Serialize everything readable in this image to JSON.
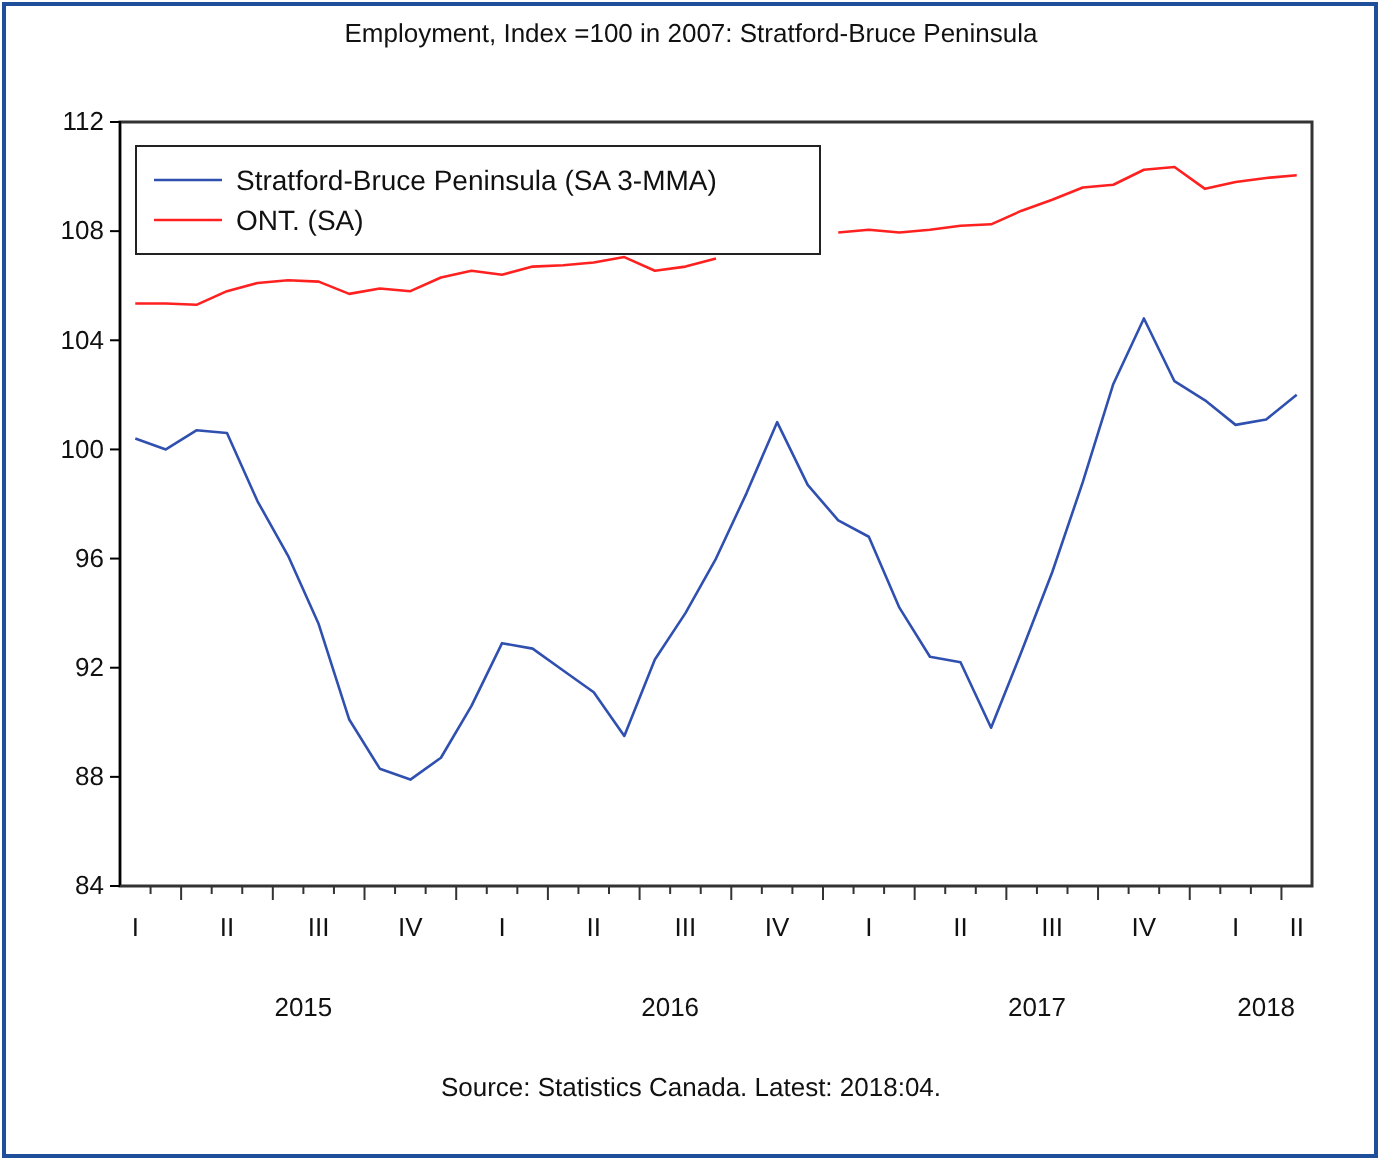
{
  "chart_data": {
    "type": "line",
    "title": "Employment, Index =100 in 2007: Stratford-Bruce Peninsula",
    "categories": [
      "I",
      null,
      null,
      "II",
      null,
      null,
      "III",
      null,
      null,
      "IV",
      null,
      null,
      "I",
      null,
      null,
      "II",
      null,
      null,
      "III",
      null,
      null,
      "IV",
      null,
      null,
      "I",
      null,
      null,
      "II",
      null,
      null,
      "III",
      null,
      null,
      "IV",
      null,
      null,
      "I",
      null,
      "II"
    ],
    "series": [
      {
        "name": "Stratford-Bruce Peninsula (SA 3-MMA)",
        "color": "#3050b0",
        "values": [
          100.4,
          100.0,
          100.7,
          100.6,
          98.1,
          96.1,
          93.6,
          90.1,
          88.3,
          87.9,
          88.7,
          90.6,
          92.9,
          92.7,
          91.9,
          91.1,
          89.5,
          92.3,
          94.0,
          96.0,
          98.4,
          101.0,
          98.7,
          97.4,
          96.8,
          94.2,
          92.4,
          92.2,
          89.8,
          92.6,
          95.5,
          98.8,
          102.4,
          104.8,
          102.5,
          101.8,
          100.9,
          101.1,
          102.0
        ]
      },
      {
        "name": "ONT. (SA)",
        "color": "#ff2020",
        "values": [
          105.35,
          105.35,
          105.3,
          105.8,
          106.1,
          106.2,
          106.15,
          105.7,
          105.9,
          105.8,
          106.3,
          106.55,
          106.4,
          106.7,
          106.75,
          106.85,
          107.05,
          106.55,
          106.7,
          107.0,
          null,
          null,
          null,
          107.95,
          108.05,
          107.95,
          108.05,
          108.2,
          108.25,
          108.75,
          109.15,
          109.6,
          109.7,
          110.25,
          110.35,
          109.55,
          109.8,
          109.95,
          110.05
        ]
      }
    ],
    "ylim": [
      84,
      112
    ],
    "yticks": [
      84,
      88,
      92,
      96,
      100,
      104,
      108,
      112
    ],
    "legend": "top left",
    "grid": false,
    "annotations": [
      "2015",
      "2016",
      "2017",
      "2018",
      "Source: Statistics Canada. Latest: 2018:04."
    ]
  }
}
